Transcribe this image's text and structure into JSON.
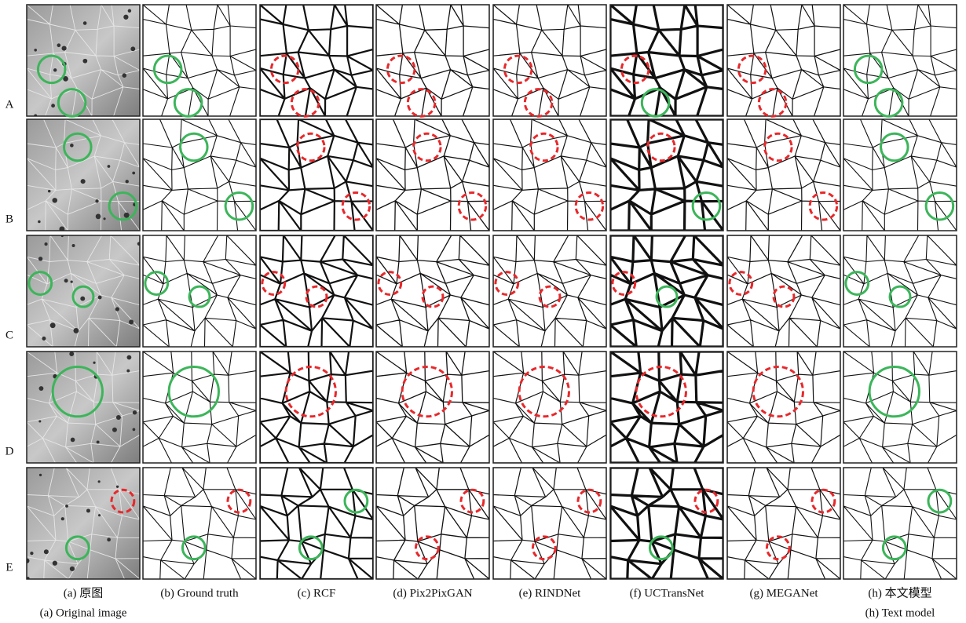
{
  "rows": [
    "A",
    "B",
    "C",
    "D",
    "E"
  ],
  "columns": [
    {
      "caption": "(a) 原图",
      "caption_en": "(a) Original image"
    },
    {
      "caption": "(b) Ground truth"
    },
    {
      "caption": "(c) RCF"
    },
    {
      "caption": "(d) Pix2PixGAN"
    },
    {
      "caption": "(e) RINDNet"
    },
    {
      "caption": "(f) UCTransNet"
    },
    {
      "caption": "(g) MEGANet"
    },
    {
      "caption": "(h) 本文模型",
      "caption_en": "(h) Text model"
    }
  ]
}
